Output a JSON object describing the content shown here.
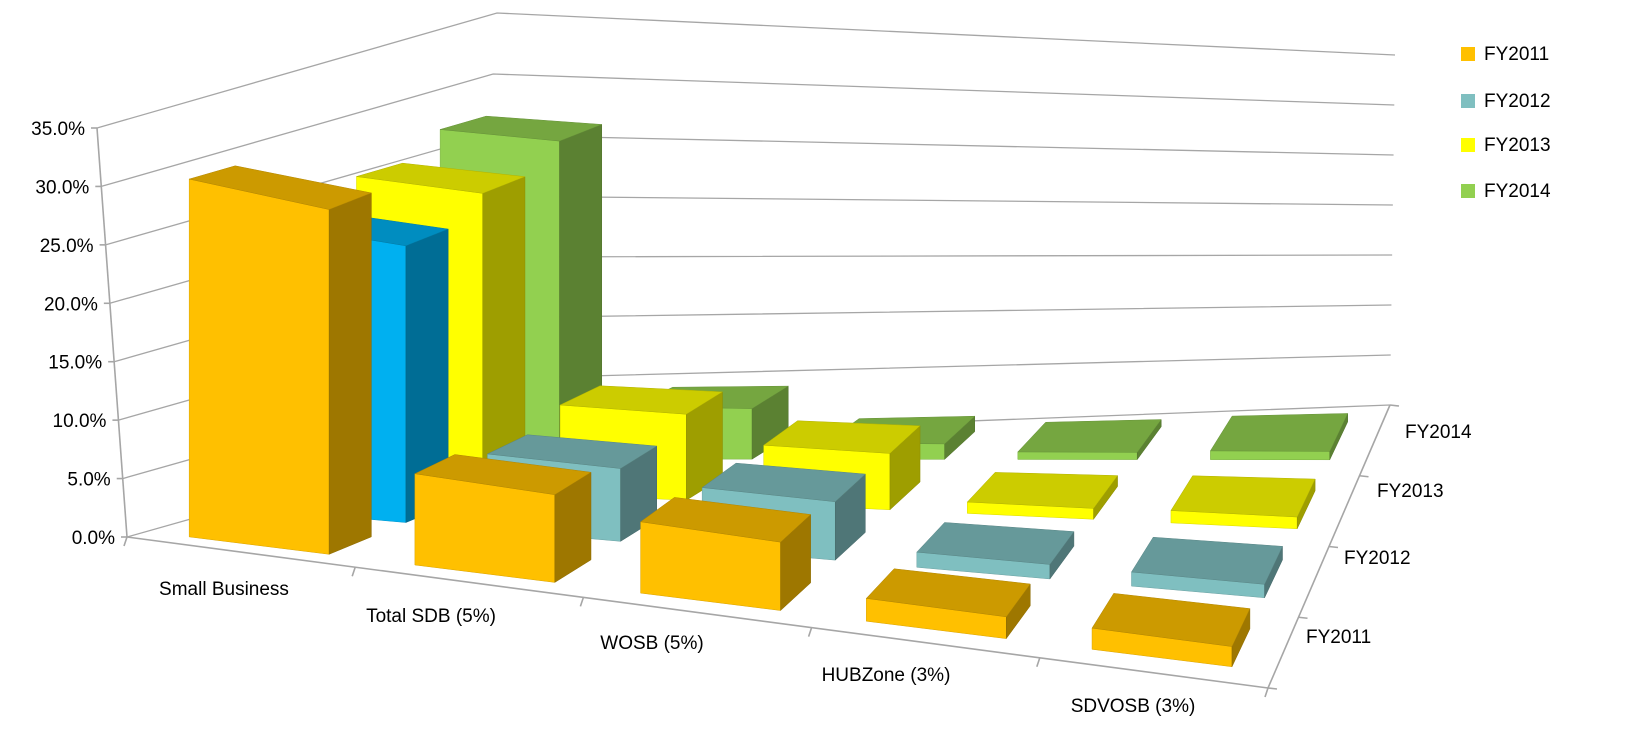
{
  "chart_data": {
    "type": "bar",
    "subtype": "3d-column",
    "title": "",
    "categories": [
      "Small Business",
      "Total SDB (5%)",
      "WOSB (5%)",
      "HUBZone (3%)",
      "SDVOSB (3%)"
    ],
    "series": [
      {
        "name": "FY2011",
        "values": [
          31.0,
          8.4,
          7.0,
          2.4,
          2.4
        ],
        "color": "#ffc000",
        "color_override": null
      },
      {
        "name": "FY2012",
        "values": [
          25.0,
          7.0,
          6.0,
          1.6,
          1.6
        ],
        "color": "#7fbfc0",
        "color_override": {
          "0": "#00b0f0"
        }
      },
      {
        "name": "FY2013",
        "values": [
          27.0,
          8.3,
          5.8,
          1.2,
          1.4
        ],
        "color": "#ffff00",
        "color_override": null
      },
      {
        "name": "FY2014",
        "values": [
          29.0,
          4.9,
          1.6,
          0.8,
          1.0
        ],
        "color": "#92d050",
        "color_override": null
      }
    ],
    "yticks": [
      "0.0%",
      "5.0%",
      "10.0%",
      "15.0%",
      "20.0%",
      "25.0%",
      "30.0%",
      "35.0%"
    ],
    "ylim": [
      0,
      35
    ],
    "depth_labels": [
      "FY2011",
      "FY2012",
      "FY2013",
      "FY2014"
    ],
    "grid": true,
    "legend": {
      "position": "top-right",
      "entries": [
        "FY2011",
        "FY2012",
        "FY2013",
        "FY2014"
      ]
    }
  }
}
